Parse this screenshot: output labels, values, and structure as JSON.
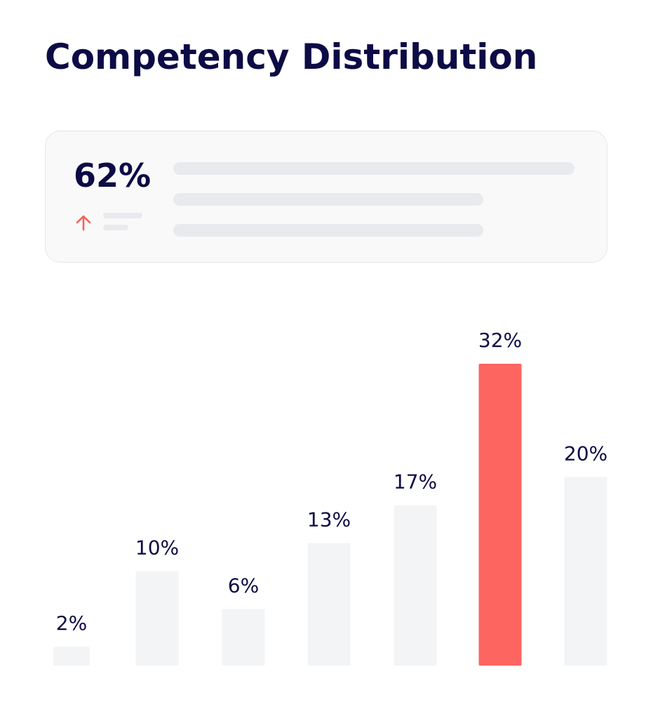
{
  "title": "Competency Distribution",
  "summary": {
    "value": "62%",
    "trend_icon": "arrow-up-icon",
    "trend_color": "#f2635c"
  },
  "colors": {
    "title": "#0d0b45",
    "bar_default": "#f3f4f6",
    "bar_highlight": "#fd6561",
    "placeholder": "#e8eaed"
  },
  "chart_data": {
    "type": "bar",
    "categories": [
      "",
      "",
      "",
      "",
      "",
      "",
      ""
    ],
    "values": [
      2,
      10,
      6,
      13,
      17,
      32,
      20
    ],
    "data_labels": [
      "2%",
      "10%",
      "6%",
      "13%",
      "17%",
      "32%",
      "20%"
    ],
    "highlight_index": 5,
    "ylim": [
      0,
      32
    ],
    "grid": false,
    "legend": "none",
    "title": "Competency Distribution",
    "xlabel": "",
    "ylabel": ""
  }
}
